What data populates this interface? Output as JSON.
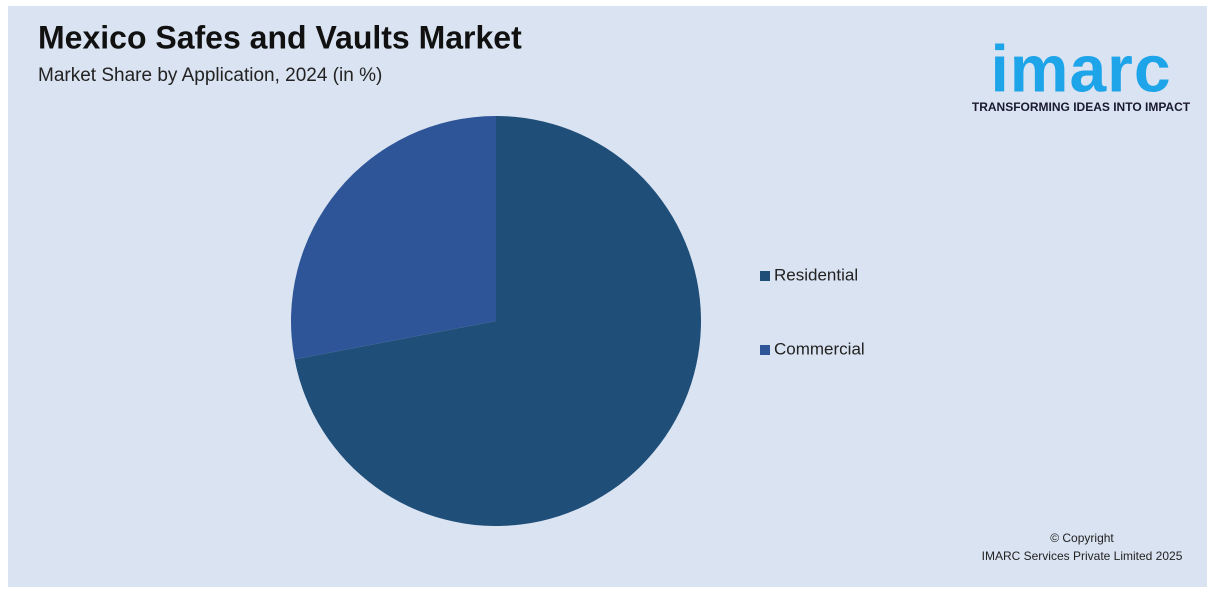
{
  "chart_data": {
    "type": "pie",
    "title": "Mexico Safes and Vaults Market",
    "subtitle": "Market Share by Application, 2024 (in %)",
    "categories": [
      "Residential",
      "Commercial"
    ],
    "values": [
      72,
      28
    ],
    "colors": [
      "#1f4e79",
      "#2e5597"
    ],
    "legend": "right"
  },
  "logo": {
    "name": "imarc",
    "tagline": "TRANSFORMING IDEAS INTO IMPACT"
  },
  "copyright": {
    "line1": "© Copyright",
    "line2": "IMARC Services Private Limited 2025"
  }
}
